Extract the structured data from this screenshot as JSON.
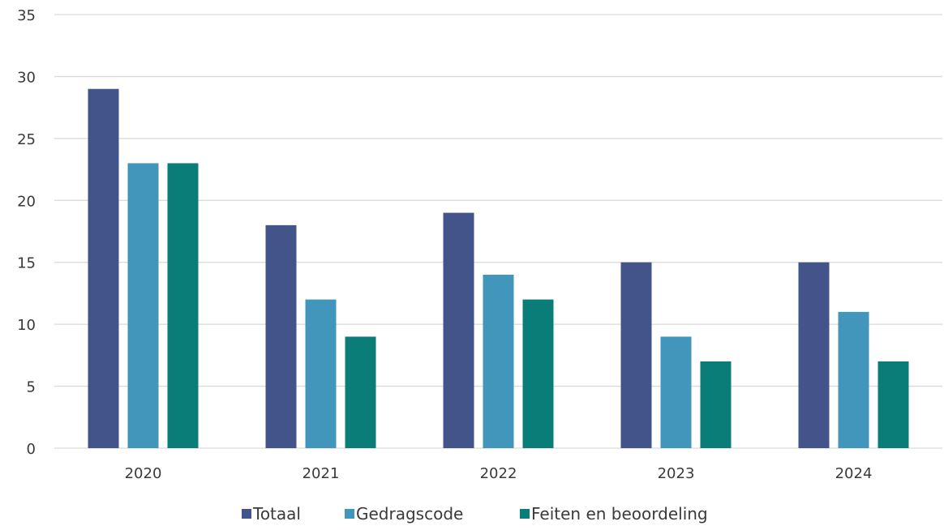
{
  "chart_data": {
    "type": "bar",
    "title": "",
    "xlabel": "",
    "ylabel": "",
    "categories": [
      "2020",
      "2021",
      "2022",
      "2023",
      "2024"
    ],
    "series": [
      {
        "name": "Totaal",
        "values": [
          29,
          18,
          19,
          15,
          15
        ],
        "color": "#43548a"
      },
      {
        "name": "Gedragscode",
        "values": [
          23,
          12,
          14,
          9,
          11
        ],
        "color": "#4396bb"
      },
      {
        "name": "Feiten en beoordeling",
        "values": [
          23,
          9,
          12,
          7,
          7
        ],
        "color": "#0b7d79"
      }
    ],
    "ylim": [
      0,
      35
    ],
    "yticks": [
      0,
      5,
      10,
      15,
      20,
      25,
      30,
      35
    ],
    "grid": true,
    "legend_position": "bottom",
    "colors": {
      "grid": "#d9d9d9",
      "axis_line": "#d9d9d9",
      "text": "#3a3a3a"
    }
  }
}
